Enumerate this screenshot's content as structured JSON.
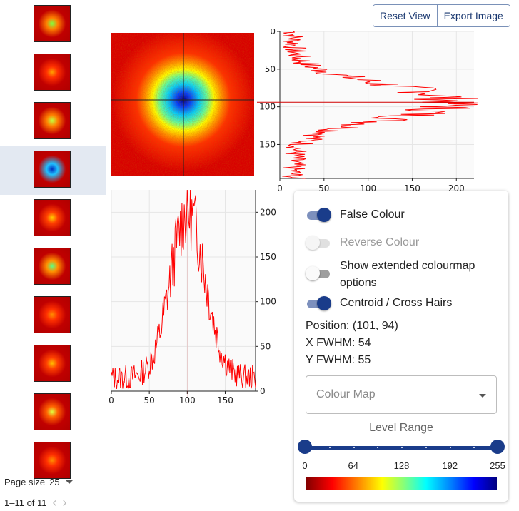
{
  "toolbar": {
    "reset_view_label": "Reset View",
    "export_image_label": "Export Image"
  },
  "thumbnails": {
    "selected_index": 3,
    "items": [
      {
        "center": "#80ff40",
        "mid": "#ff8000",
        "edge": "#c00000"
      },
      {
        "center": "#ffa000",
        "mid": "#ff3000",
        "edge": "#c00000"
      },
      {
        "center": "#c0ff40",
        "mid": "#ff8000",
        "edge": "#c00000"
      },
      {
        "center": "#0030c0",
        "mid": "#20c0ff",
        "edge": "#c00000"
      },
      {
        "center": "#ffd000",
        "mid": "#ff4000",
        "edge": "#c00000"
      },
      {
        "center": "#60ff80",
        "mid": "#ff9000",
        "edge": "#c00000"
      },
      {
        "center": "#ff9000",
        "mid": "#ff3000",
        "edge": "#c00000"
      },
      {
        "center": "#ffc000",
        "mid": "#ff4000",
        "edge": "#c00000"
      },
      {
        "center": "#e0ff40",
        "mid": "#ff6000",
        "edge": "#c00000"
      },
      {
        "center": "#ff9000",
        "mid": "#ff3000",
        "edge": "#c00000"
      }
    ]
  },
  "pagination": {
    "page_size_label": "Page size",
    "page_size_value": "25",
    "range_label": "1–11 of 11"
  },
  "controls": {
    "false_colour": {
      "label": "False Colour",
      "on": true
    },
    "reverse_colour": {
      "label": "Reverse Colour",
      "on": false,
      "disabled": true
    },
    "extended_colourmap": {
      "label": "Show extended colourmap options",
      "on": false
    },
    "centroid": {
      "label": "Centroid / Cross Hairs",
      "on": true
    },
    "position": "Position: (101, 94)",
    "x_fwhm": "X FWHM: 54",
    "y_fwhm": "Y FWHM: 55",
    "colour_map_placeholder": "Colour Map",
    "level_range_label": "Level Range",
    "level_range": {
      "min": 0,
      "max": 255,
      "low": 0,
      "high": 255
    },
    "level_ticks": [
      "0",
      "64",
      "128",
      "192",
      "255"
    ]
  },
  "chart_data": [
    {
      "type": "line",
      "id": "vertical-profile",
      "x_axis_ticks": [
        "0",
        "50",
        "100",
        "150",
        "200"
      ],
      "y_axis_ticks": [
        "0",
        "50",
        "100",
        "150"
      ],
      "xlim": [
        0,
        220
      ],
      "ylim": [
        0,
        195
      ],
      "y_inverted": true,
      "crosshair_y": 94,
      "grid": true,
      "line_color": "#ff0000",
      "profile": {
        "center": 94,
        "sigma": 23,
        "amplitude": 180,
        "baseline": 25
      }
    },
    {
      "type": "line",
      "id": "horizontal-profile",
      "x_axis_ticks": [
        "0",
        "50",
        "100",
        "150"
      ],
      "y_axis_ticks": [
        "0",
        "50",
        "100",
        "150",
        "200"
      ],
      "xlim": [
        0,
        190
      ],
      "ylim": [
        0,
        225
      ],
      "crosshair_x": 101,
      "grid": true,
      "line_color": "#ff0000",
      "profile": {
        "center": 101,
        "sigma": 23,
        "amplitude": 185,
        "baseline": 25
      }
    }
  ]
}
